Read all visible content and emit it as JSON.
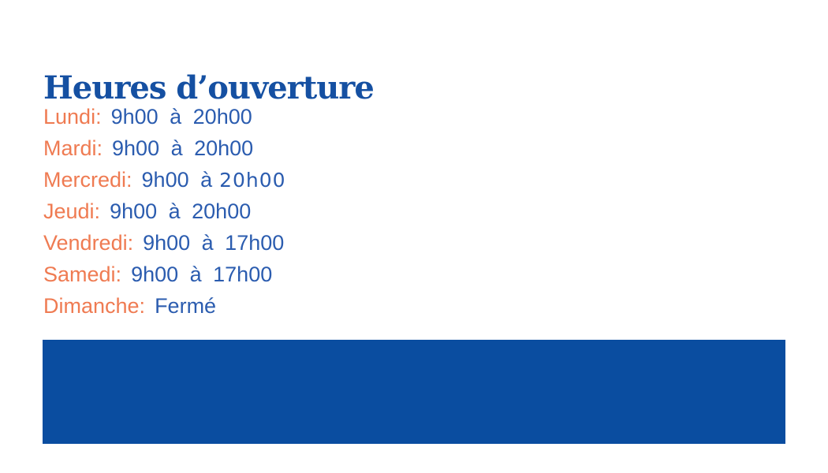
{
  "page": {
    "title": "Heures d’ouverture"
  },
  "hours": {
    "rows": [
      {
        "label": "Lundi:",
        "time": "9h00 à 20h00",
        "time_alt": ""
      },
      {
        "label": "Mardi:",
        "time": "9h00 à 20h00",
        "time_alt": ""
      },
      {
        "label": "Mercredi:",
        "time": "9h00 à",
        "time_alt": "20h00"
      },
      {
        "label": "Jeudi:",
        "time": "9h00 à 20h00",
        "time_alt": ""
      },
      {
        "label": "Vendredi:",
        "time": "9h00 à 17h00",
        "time_alt": ""
      },
      {
        "label": "Samedi:",
        "time": "9h00 à 17h00",
        "time_alt": ""
      },
      {
        "label": "Dimanche:",
        "time": "Fermé",
        "time_alt": ""
      }
    ]
  },
  "colors": {
    "title_blue": "#1550A2",
    "time_blue": "#2B5CAF",
    "day_orange": "#EF7B52",
    "banner_blue": "#0A4DA0",
    "background": "#FFFFFF"
  }
}
